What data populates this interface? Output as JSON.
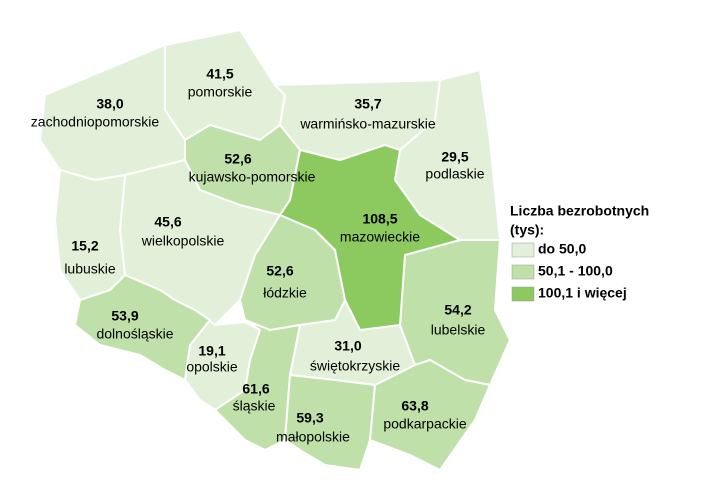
{
  "chart_data": {
    "type": "map",
    "legend_title": [
      "Liczba bezrobotnych",
      "(tys):"
    ],
    "series": [
      {
        "name": "do 50,0",
        "color": "#e2f0d9",
        "regions": [
          "zachodniopomorskie",
          "pomorskie",
          "warmińsko-mazurskie",
          "podlaskie",
          "wielkopolskie",
          "lubuskie",
          "opolskie",
          "świętokrzyskie"
        ],
        "values": [
          38.0,
          41.5,
          35.7,
          29.5,
          45.6,
          15.2,
          19.1,
          31.0
        ],
        "value_labels": [
          "38,0",
          "41,5",
          "35,7",
          "29,5",
          "45,6",
          "15,2",
          "19,1",
          "31,0"
        ]
      },
      {
        "name": "50,1 - 100,0",
        "color": "#bfe0a8",
        "regions": [
          "kujawsko-pomorskie",
          "łódzkie",
          "dolnośląskie",
          "lubelskie",
          "śląskie",
          "małopolskie",
          "podkarpackie"
        ],
        "values": [
          52.6,
          52.6,
          53.9,
          54.2,
          61.6,
          59.3,
          63.8
        ],
        "value_labels": [
          "52,6",
          "52,6",
          "53,9",
          "54,2",
          "61,6",
          "59,3",
          "63,8"
        ]
      },
      {
        "name": "100,1 i więcej",
        "color": "#8cc95f",
        "regions": [
          "mazowieckie"
        ],
        "values": [
          108.5
        ],
        "value_labels": [
          "108,5"
        ]
      }
    ]
  }
}
